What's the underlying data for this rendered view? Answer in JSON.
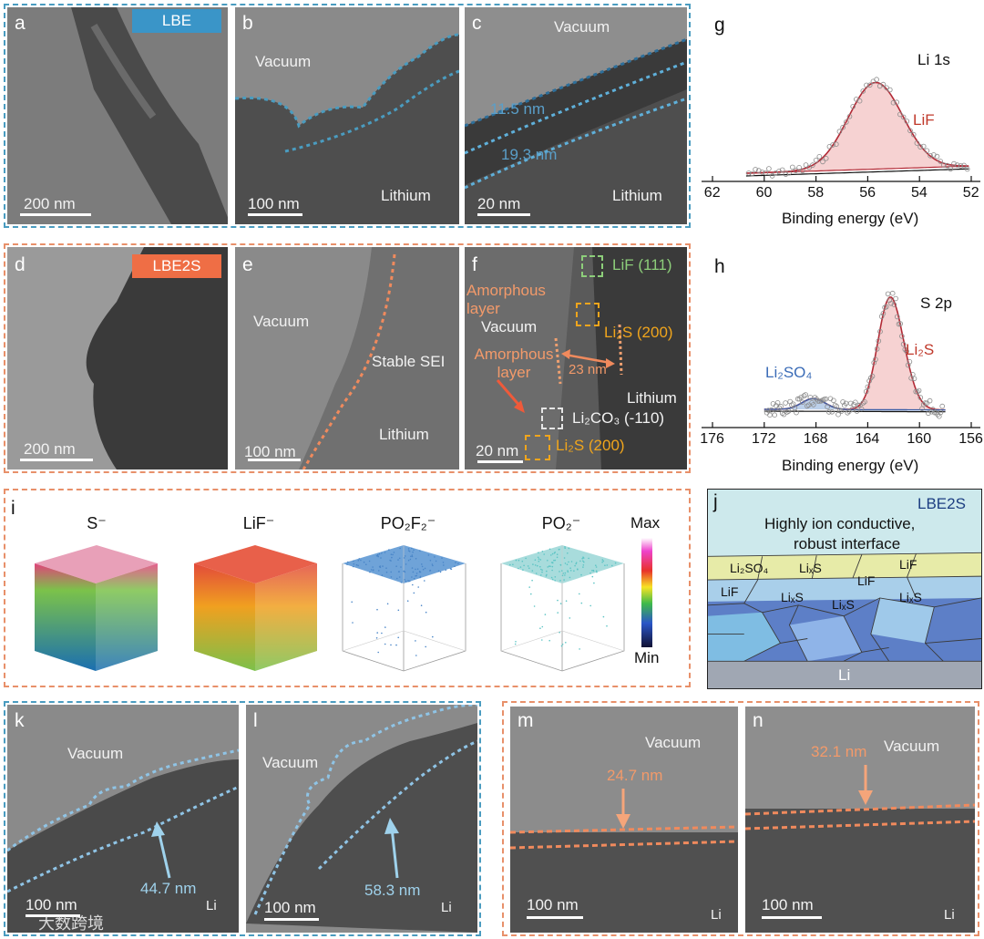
{
  "panels": {
    "a": {
      "label": "a",
      "badge": "LBE",
      "scale": "200 nm"
    },
    "b": {
      "label": "b",
      "vacuum": "Vacuum",
      "lithium": "Lithium",
      "scale": "100 nm"
    },
    "c": {
      "label": "c",
      "vacuum": "Vacuum",
      "t1": "11.5 nm",
      "t2": "19.3 nm",
      "lithium": "Lithium",
      "scale": "20 nm"
    },
    "d": {
      "label": "d",
      "badge": "LBE2S",
      "scale": "200 nm"
    },
    "e": {
      "label": "e",
      "vacuum": "Vacuum",
      "sei": "Stable SEI",
      "lithium": "Lithium",
      "scale": "100 nm"
    },
    "f": {
      "label": "f",
      "amorph1": "Amorphous layer",
      "vacuum": "Vacuum",
      "amorph2": "Amorphous layer",
      "lif": "LiF (111)",
      "li2s_a": "Li₂S (200)",
      "thick": "23 nm",
      "lithium": "Lithium",
      "li2co3": "Li₂CO₃ (-110)",
      "li2s_b": "Li₂S (200)",
      "scale": "20 nm"
    },
    "g": {
      "label": "g",
      "title": "Li 1s",
      "peak": "LiF",
      "xlabel": "Binding energy (eV)",
      "ticks": [
        "62",
        "60",
        "58",
        "56",
        "54",
        "52"
      ]
    },
    "h": {
      "label": "h",
      "title": "S 2p",
      "peak1": "Li₂S",
      "peak2": "Li₂SO₄",
      "xlabel": "Binding energy (eV)",
      "ticks": [
        "176",
        "172",
        "168",
        "164",
        "160",
        "156"
      ]
    },
    "i": {
      "label": "i",
      "ions": [
        "S⁻",
        "LiF⁻",
        "PO₂F₂⁻",
        "PO₂⁻"
      ],
      "max": "Max",
      "min": "Min"
    },
    "j": {
      "label": "j",
      "tag": "LBE2S",
      "line1": "Highly ion conductive,",
      "line2": "robust interface",
      "grains": [
        "Li₂SO₄",
        "LiₓS",
        "LiF",
        "LiF",
        "LiF",
        "LiₓS",
        "LiₓS",
        "LiₓS"
      ],
      "base": "Li"
    },
    "k": {
      "label": "k",
      "vacuum": "Vacuum",
      "thick": "44.7 nm",
      "li": "Li",
      "scale": "100 nm"
    },
    "l": {
      "label": "l",
      "vacuum": "Vacuum",
      "thick": "58.3 nm",
      "li": "Li",
      "scale": "100 nm"
    },
    "m": {
      "label": "m",
      "vacuum": "Vacuum",
      "thick": "24.7 nm",
      "li": "Li",
      "scale": "100 nm"
    },
    "n": {
      "label": "n",
      "vacuum": "Vacuum",
      "thick": "32.1 nm",
      "li": "Li",
      "scale": "100 nm"
    }
  },
  "watermark": "大数跨境",
  "colors": {
    "blue_frame": "#4a9cc0",
    "orange_frame": "#e8906a",
    "lif_fill": "#f6d2d2",
    "fit_red": "#b22a36"
  }
}
